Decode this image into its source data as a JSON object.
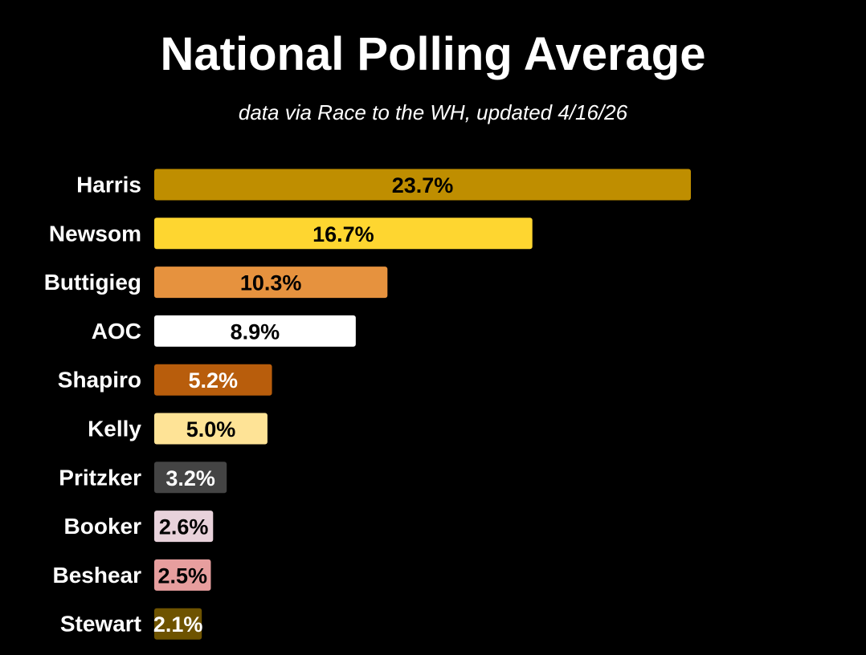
{
  "chart_data": {
    "type": "bar",
    "orientation": "horizontal",
    "title": "National Polling Average",
    "subtitle": "data via Race to the WH, updated 4/16/26",
    "categories": [
      "Harris",
      "Newsom",
      "Buttigieg",
      "AOC",
      "Shapiro",
      "Kelly",
      "Pritzker",
      "Booker",
      "Beshear",
      "Stewart"
    ],
    "values": [
      23.7,
      16.7,
      10.3,
      8.9,
      5.2,
      5.0,
      3.2,
      2.6,
      2.5,
      2.1
    ],
    "value_labels": [
      "23.7%",
      "16.7%",
      "10.3%",
      "8.9%",
      "5.2%",
      "5.0%",
      "3.2%",
      "2.6%",
      "2.5%",
      "2.1%"
    ],
    "colors": [
      "#bf8e00",
      "#fed630",
      "#e6923e",
      "#ffffff",
      "#b85d0c",
      "#fee396",
      "#444444",
      "#e8d2db",
      "#e79e9e",
      "#6e5300"
    ],
    "label_colors": [
      "#000000",
      "#000000",
      "#000000",
      "#000000",
      "#ffffff",
      "#000000",
      "#ffffff",
      "#000000",
      "#000000",
      "#ffffff"
    ],
    "xlim": [
      0,
      23.7
    ],
    "grid": false,
    "legend": "none",
    "units": "%"
  }
}
